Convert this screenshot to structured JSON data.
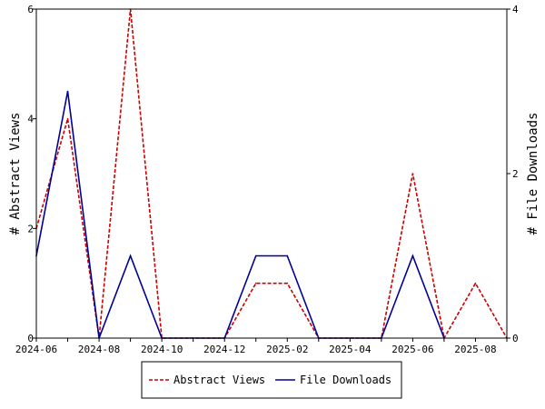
{
  "chart_data": {
    "type": "line",
    "x": [
      "2024-06",
      "2024-07",
      "2024-08",
      "2024-09",
      "2024-10",
      "2024-11",
      "2024-12",
      "2025-01",
      "2025-02",
      "2025-03",
      "2025-04",
      "2025-05",
      "2025-06",
      "2025-07",
      "2025-08",
      "2025-09"
    ],
    "x_tick_labels": [
      "2024-06",
      "2024-08",
      "2024-10",
      "2024-12",
      "2025-02",
      "2025-04",
      "2025-06",
      "2025-08"
    ],
    "ylabel_left": "# Abstract Views",
    "ylabel_right": "# File Downloads",
    "ylim_left": [
      0,
      6
    ],
    "ylim_right": [
      0,
      4
    ],
    "y_ticks_left": [
      0,
      2,
      4,
      6
    ],
    "y_ticks_right": [
      0,
      2,
      4
    ],
    "grid": false,
    "legend_position": "bottom-center",
    "series": [
      {
        "name": "Abstract Views",
        "axis": "left",
        "color": "#cc0000",
        "style": "dashed",
        "values": [
          2,
          4,
          0,
          6,
          0,
          0,
          0,
          1,
          1,
          0,
          0,
          0,
          3,
          0,
          1,
          0
        ]
      },
      {
        "name": "File Downloads",
        "axis": "right",
        "color": "#000099",
        "style": "solid",
        "values": [
          1,
          3,
          0,
          1,
          0,
          0,
          0,
          1,
          1,
          0,
          0,
          0,
          1,
          0,
          null,
          null
        ]
      }
    ]
  }
}
